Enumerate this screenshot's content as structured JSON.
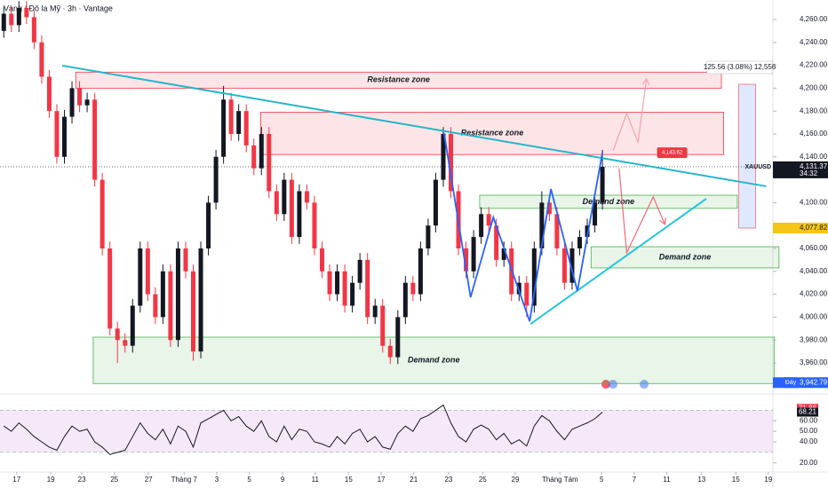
{
  "chart_data": {
    "type": "candlestick",
    "title": "Vàng / Đô la Mỹ · 3h · Vantage",
    "symbol": "XAUUSD",
    "countdown": "34:32",
    "colors": {
      "up": "#131722",
      "down": "#f23645"
    },
    "xlim": [
      -0.5,
      101.5
    ],
    "xticks": [
      {
        "value": 1.7,
        "label": "17"
      },
      {
        "value": 6.2,
        "label": "19"
      },
      {
        "value": 10.3,
        "label": "23"
      },
      {
        "value": 14.6,
        "label": "25"
      },
      {
        "value": 19.1,
        "label": "27"
      },
      {
        "value": 23.8,
        "label": "Tháng 7"
      },
      {
        "value": 28.1,
        "label": "3"
      },
      {
        "value": 32.4,
        "label": "5"
      },
      {
        "value": 36.8,
        "label": "9"
      },
      {
        "value": 41.1,
        "label": "11"
      },
      {
        "value": 45.5,
        "label": "15"
      },
      {
        "value": 49.8,
        "label": "17"
      },
      {
        "value": 54.1,
        "label": "21"
      },
      {
        "value": 58.7,
        "label": "23"
      },
      {
        "value": 63.2,
        "label": "25"
      },
      {
        "value": 67.5,
        "label": "29"
      },
      {
        "value": 73.4,
        "label": "Tháng Tám"
      },
      {
        "value": 78.9,
        "label": "5"
      },
      {
        "value": 83.2,
        "label": "7"
      },
      {
        "value": 87.5,
        "label": "11"
      },
      {
        "value": 92.1,
        "label": "13"
      },
      {
        "value": 96.6,
        "label": "15"
      },
      {
        "value": 100.9,
        "label": "19"
      }
    ],
    "ylim": [
      3936,
      4277
    ],
    "yticks": [
      {
        "value": 4260,
        "label": "4,260.00"
      },
      {
        "value": 4240,
        "label": "4,240.00"
      },
      {
        "value": 4220,
        "label": "4,220.00"
      },
      {
        "value": 4200,
        "label": "4,200.00"
      },
      {
        "value": 4180,
        "label": "4,180.00"
      },
      {
        "value": 4160,
        "label": "4,160.00"
      },
      {
        "value": 4140,
        "label": "4,140.00"
      },
      {
        "value": 4100,
        "label": "4,100.00"
      },
      {
        "value": 4060,
        "label": "4,060.00"
      },
      {
        "value": 4040,
        "label": "4,040.00"
      },
      {
        "value": 4020,
        "label": "4,020.00"
      },
      {
        "value": 4000,
        "label": "4,000.00"
      },
      {
        "value": 3980,
        "label": "3,980.00"
      },
      {
        "value": 3960,
        "label": "3,960.00"
      }
    ],
    "ohlc": [
      [
        4250,
        4271,
        4244,
        4265
      ],
      [
        4265,
        4271,
        4249,
        4255
      ],
      [
        4255,
        4276,
        4249,
        4270
      ],
      [
        4270,
        4276,
        4256,
        4262
      ],
      [
        4262,
        4268,
        4234,
        4240
      ],
      [
        4240,
        4246,
        4204,
        4210
      ],
      [
        4210,
        4216,
        4174,
        4180
      ],
      [
        4180,
        4186,
        4134,
        4140
      ],
      [
        4140,
        4181,
        4134,
        4175
      ],
      [
        4175,
        4206,
        4169,
        4200
      ],
      [
        4200,
        4206,
        4179,
        4185
      ],
      [
        4185,
        4196,
        4179,
        4190
      ],
      [
        4190,
        4196,
        4114,
        4120
      ],
      [
        4120,
        4126,
        4054,
        4060
      ],
      [
        4060,
        4066,
        3984,
        3990
      ],
      [
        3990,
        3996,
        3960,
        3980
      ],
      [
        3980,
        3986,
        3969,
        3975
      ],
      [
        3975,
        4016,
        3969,
        4010
      ],
      [
        4010,
        4066,
        4004,
        4060
      ],
      [
        4060,
        4066,
        4014,
        4020
      ],
      [
        4020,
        4026,
        3994,
        4000
      ],
      [
        4000,
        4046,
        3994,
        4040
      ],
      [
        4040,
        4046,
        3974,
        3980
      ],
      [
        3980,
        4066,
        3974,
        4060
      ],
      [
        4060,
        4066,
        4034,
        4040
      ],
      [
        4040,
        4046,
        3962,
        3970
      ],
      [
        3970,
        4066,
        3964,
        4060
      ],
      [
        4060,
        4106,
        4054,
        4100
      ],
      [
        4100,
        4146,
        4094,
        4140
      ],
      [
        4140,
        4202,
        4134,
        4190
      ],
      [
        4190,
        4196,
        4154,
        4160
      ],
      [
        4160,
        4186,
        4154,
        4180
      ],
      [
        4180,
        4186,
        4144,
        4150
      ],
      [
        4150,
        4156,
        4124,
        4130
      ],
      [
        4130,
        4166,
        4124,
        4160
      ],
      [
        4160,
        4166,
        4104,
        4110
      ],
      [
        4110,
        4116,
        4084,
        4090
      ],
      [
        4090,
        4126,
        4084,
        4120
      ],
      [
        4120,
        4126,
        4064,
        4070
      ],
      [
        4070,
        4116,
        4064,
        4110
      ],
      [
        4110,
        4116,
        4094,
        4100
      ],
      [
        4100,
        4106,
        4054,
        4060
      ],
      [
        4060,
        4066,
        4034,
        4040
      ],
      [
        4040,
        4046,
        4014,
        4020
      ],
      [
        4020,
        4046,
        4014,
        4040
      ],
      [
        4040,
        4046,
        4004,
        4010
      ],
      [
        4010,
        4036,
        4004,
        4030
      ],
      [
        4030,
        4056,
        4024,
        4050
      ],
      [
        4050,
        4056,
        3994,
        4000
      ],
      [
        4000,
        4016,
        3994,
        4010
      ],
      [
        4010,
        4016,
        3969,
        3975
      ],
      [
        3975,
        3981,
        3959,
        3965
      ],
      [
        3965,
        4006,
        3959,
        4000
      ],
      [
        4000,
        4036,
        3994,
        4030
      ],
      [
        4030,
        4036,
        4014,
        4020
      ],
      [
        4020,
        4066,
        4014,
        4060
      ],
      [
        4060,
        4086,
        4054,
        4080
      ],
      [
        4080,
        4126,
        4074,
        4120
      ],
      [
        4120,
        4166,
        4114,
        4160
      ],
      [
        4160,
        4166,
        4104,
        4110
      ],
      [
        4110,
        4116,
        4054,
        4060
      ],
      [
        4060,
        4066,
        4034,
        4040
      ],
      [
        4040,
        4076,
        4034,
        4070
      ],
      [
        4070,
        4096,
        4064,
        4090
      ],
      [
        4090,
        4096,
        4074,
        4080
      ],
      [
        4080,
        4086,
        4044,
        4050
      ],
      [
        4050,
        4066,
        4044,
        4060
      ],
      [
        4060,
        4066,
        4014,
        4020
      ],
      [
        4020,
        4036,
        4014,
        4030
      ],
      [
        4030,
        4036,
        4000,
        4010
      ],
      [
        4010,
        4066,
        4004,
        4060
      ],
      [
        4060,
        4110,
        4054,
        4100
      ],
      [
        4100,
        4106,
        4084,
        4090
      ],
      [
        4090,
        4096,
        4054,
        4060
      ],
      [
        4060,
        4066,
        4024,
        4030
      ],
      [
        4030,
        4066,
        4024,
        4060
      ],
      [
        4060,
        4076,
        4054,
        4070
      ],
      [
        4070,
        4086,
        4064,
        4080
      ],
      [
        4080,
        4106,
        4074,
        4100
      ],
      [
        4100,
        4146,
        4094,
        4131.37
      ]
    ],
    "last_price": {
      "value": 4131.37,
      "label": "4,131.37"
    },
    "price_tags": [
      {
        "value": 4077.82,
        "label": "4,077.82",
        "color": "#f5c518"
      },
      {
        "value": 3942.79,
        "label": "3,942.79",
        "color": "#2962ff",
        "name": "Đáy"
      }
    ],
    "zones": [
      {
        "label": "Resistance zone",
        "color": "#f23645",
        "x": [
          9.5,
          94.7
        ],
        "y": [
          4200,
          4214
        ]
      },
      {
        "label": "Resistance zone",
        "color": "#f23645",
        "x": [
          33.9,
          95.0
        ],
        "y": [
          4142,
          4179
        ]
      },
      {
        "label": "Demand zone",
        "color": "#4caf50",
        "x": [
          62.8,
          96.8
        ],
        "y": [
          4095,
          4106.5
        ]
      },
      {
        "label": "Demand zone",
        "color": "#4caf50",
        "x": [
          77.5,
          102.3
        ],
        "y": [
          4043,
          4061.5
        ]
      },
      {
        "label": "Demand zone",
        "color": "#4caf50",
        "x": [
          11.8,
          101.7
        ],
        "y": [
          3942,
          3982.5
        ]
      }
    ],
    "trendlines": [
      {
        "color": "#26b5c9",
        "x": [
          7.7,
          100.6
        ],
        "y": [
          4219.7,
          4114.3
        ]
      },
      {
        "color": "#26c6da",
        "x": [
          69.5,
          92.7
        ],
        "y": [
          3994,
          4103.4
        ]
      }
    ],
    "pattern": {
      "color": "#2962ff",
      "x": [
        58.1,
        61.6,
        64.6,
        69.4,
        72.2,
        75.7,
        79
      ],
      "y": [
        4160.8,
        4017.4,
        4087.1,
        3996.4,
        4111.9,
        4022.8,
        4143.7
      ]
    },
    "projections": [
      {
        "color": "#f7a1ad",
        "x": [
          80.4,
          82.2,
          83.7,
          84.8
        ],
        "y": [
          4145.3,
          4177.8,
          4153,
          4207.3
        ]
      },
      {
        "color": "#f0697a",
        "x": [
          81.2,
          82.2,
          85.7,
          87.2
        ],
        "y": [
          4129.8,
          4056.1,
          4105,
          4081.7
        ]
      }
    ],
    "target_tag": {
      "value": 4143.62,
      "label": "4,143.62",
      "x": 88.2
    },
    "measure": {
      "label": "125.56 (3.08%) 12,556",
      "x": [
        97,
        99.2
      ],
      "y": [
        4077.82,
        4203.38
      ]
    },
    "rsi": {
      "ylim": [
        13,
        83
      ],
      "yticks": [
        {
          "value": 60,
          "label": "60.00"
        },
        {
          "value": 50,
          "label": "50.00"
        },
        {
          "value": 40,
          "label": "40.00"
        },
        {
          "value": 20,
          "label": "20.00"
        }
      ],
      "band": [
        30,
        70
      ],
      "ma_value": 71.86,
      "value_tag": 68.21,
      "values": [
        55,
        50,
        58,
        52,
        45,
        40,
        35,
        32,
        45,
        55,
        50,
        52,
        40,
        35,
        28,
        30,
        32,
        45,
        58,
        48,
        42,
        52,
        38,
        55,
        50,
        35,
        58,
        62,
        66,
        70,
        60,
        64,
        55,
        50,
        60,
        45,
        40,
        55,
        42,
        52,
        50,
        40,
        38,
        35,
        45,
        38,
        48,
        52,
        40,
        45,
        35,
        33,
        48,
        55,
        50,
        62,
        65,
        70,
        75,
        58,
        45,
        40,
        52,
        56,
        52,
        42,
        48,
        38,
        42,
        36,
        55,
        65,
        60,
        50,
        42,
        52,
        55,
        58,
        62,
        68.21
      ]
    }
  }
}
